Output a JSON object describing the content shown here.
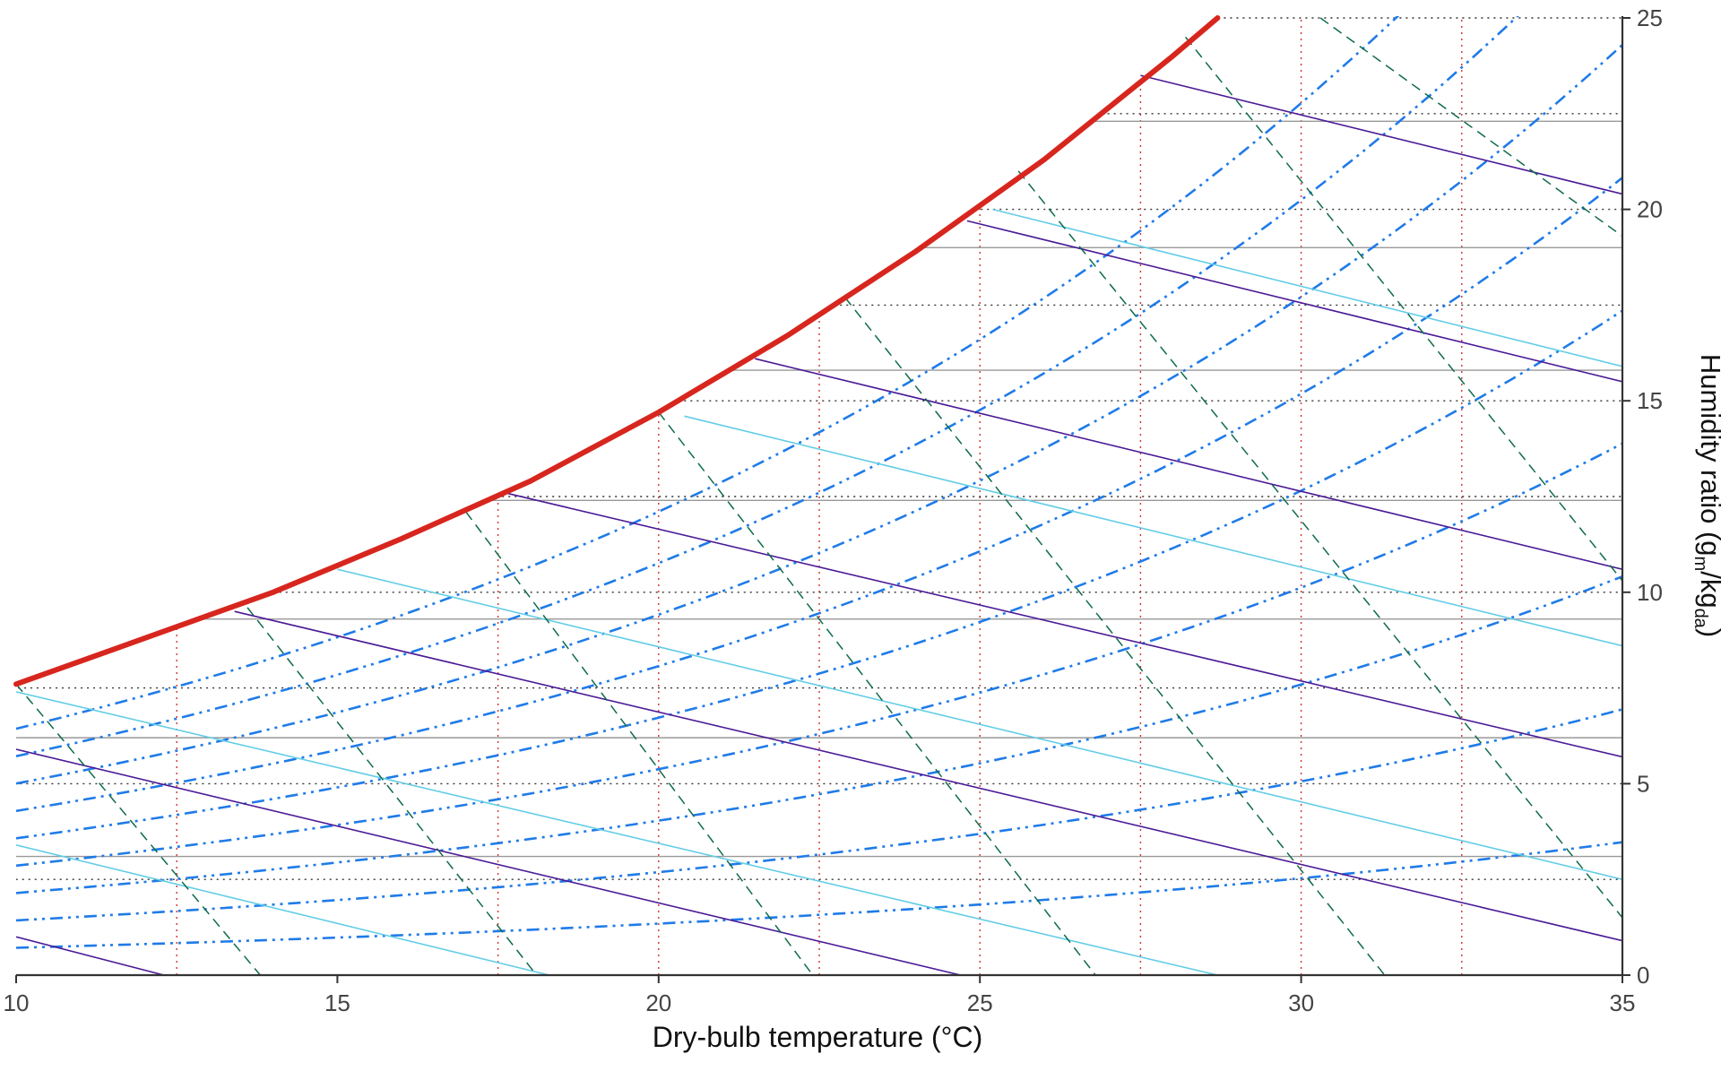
{
  "chart_data": {
    "type": "line",
    "title": "",
    "xlabel": "Dry-bulb temperature (°C)",
    "ylabel_main": "Humidity ratio (g",
    "ylabel_sub1": "m",
    "ylabel_mid": "/kg",
    "ylabel_sub2": "da",
    "ylabel_end": ")",
    "xlim": [
      10,
      35
    ],
    "ylim": [
      0,
      25
    ],
    "x_ticks": [
      "10",
      "15",
      "20",
      "25",
      "30",
      "35"
    ],
    "y_ticks": [
      "0",
      "5",
      "10",
      "15",
      "20",
      "25"
    ],
    "y_axis_position": "right",
    "grid": false,
    "colors": {
      "saturation": "#d7261e",
      "relative_humidity": "#1f7be8",
      "wet_bulb": "#0f6b4a",
      "enthalpy": "#4b1a96",
      "specific_volume": "#63cde6",
      "dry_bulb_grid": "#cc3333",
      "humidity_grid": "#333333",
      "vapor_pressure": "#999999"
    },
    "saturation_curve": {
      "x": [
        10,
        12,
        14,
        16,
        18,
        20,
        22,
        24,
        26,
        28,
        28.7
      ],
      "y": [
        7.6,
        8.8,
        10.0,
        11.4,
        12.9,
        14.7,
        16.7,
        18.9,
        21.3,
        24.0,
        25.0
      ]
    },
    "relative_humidity_fractions": [
      0.1,
      0.2,
      0.3,
      0.4,
      0.5,
      0.6,
      0.7,
      0.8,
      0.9
    ],
    "wet_bulb_lines": [
      {
        "x": [
          10.0,
          13.8
        ],
        "y": [
          7.6,
          0
        ]
      },
      {
        "x": [
          13.6,
          18.1
        ],
        "y": [
          9.6,
          0
        ]
      },
      {
        "x": [
          17.0,
          22.4
        ],
        "y": [
          12.1,
          0
        ]
      },
      {
        "x": [
          20.0,
          26.8
        ],
        "y": [
          14.7,
          0
        ]
      },
      {
        "x": [
          22.9,
          31.3
        ],
        "y": [
          17.7,
          0
        ]
      },
      {
        "x": [
          25.6,
          35.0
        ],
        "y": [
          21.0,
          1.5
        ]
      },
      {
        "x": [
          28.2,
          35.0
        ],
        "y": [
          24.5,
          10.3
        ]
      },
      {
        "x": [
          30.3,
          35.0
        ],
        "y": [
          25.0,
          19.3
        ]
      }
    ],
    "enthalpy_lines": [
      {
        "x": [
          10.0,
          12.3
        ],
        "y": [
          1.0,
          0
        ]
      },
      {
        "x": [
          10.0,
          24.7
        ],
        "y": [
          5.9,
          0
        ]
      },
      {
        "x": [
          13.4,
          35.0
        ],
        "y": [
          9.5,
          0.9
        ]
      },
      {
        "x": [
          17.6,
          35.0
        ],
        "y": [
          12.6,
          5.7
        ]
      },
      {
        "x": [
          21.5,
          35.0
        ],
        "y": [
          16.1,
          10.6
        ]
      },
      {
        "x": [
          24.8,
          35.0
        ],
        "y": [
          19.7,
          15.5
        ]
      },
      {
        "x": [
          27.5,
          35.0
        ],
        "y": [
          23.5,
          20.4
        ]
      }
    ],
    "specific_volume_lines": [
      {
        "x": [
          10.0,
          18.3
        ],
        "y": [
          3.4,
          0
        ]
      },
      {
        "x": [
          10.0,
          28.7
        ],
        "y": [
          7.4,
          0
        ]
      },
      {
        "x": [
          15.0,
          35.0
        ],
        "y": [
          10.6,
          2.5
        ]
      },
      {
        "x": [
          20.4,
          35.0
        ],
        "y": [
          14.6,
          8.6
        ]
      },
      {
        "x": [
          25.2,
          35.0
        ],
        "y": [
          20.0,
          15.9
        ]
      }
    ],
    "dry_bulb_gridlines": [
      12.5,
      17.5,
      20,
      22.5,
      25,
      27.5,
      30,
      32.5
    ],
    "humidity_gridlines": [
      2.5,
      5,
      7.5,
      10,
      12.5,
      15,
      17.5,
      20,
      22.5,
      25
    ],
    "vapor_pressure_lines": [
      3.1,
      6.2,
      9.3,
      12.4,
      15.8,
      19.0,
      22.3
    ]
  }
}
